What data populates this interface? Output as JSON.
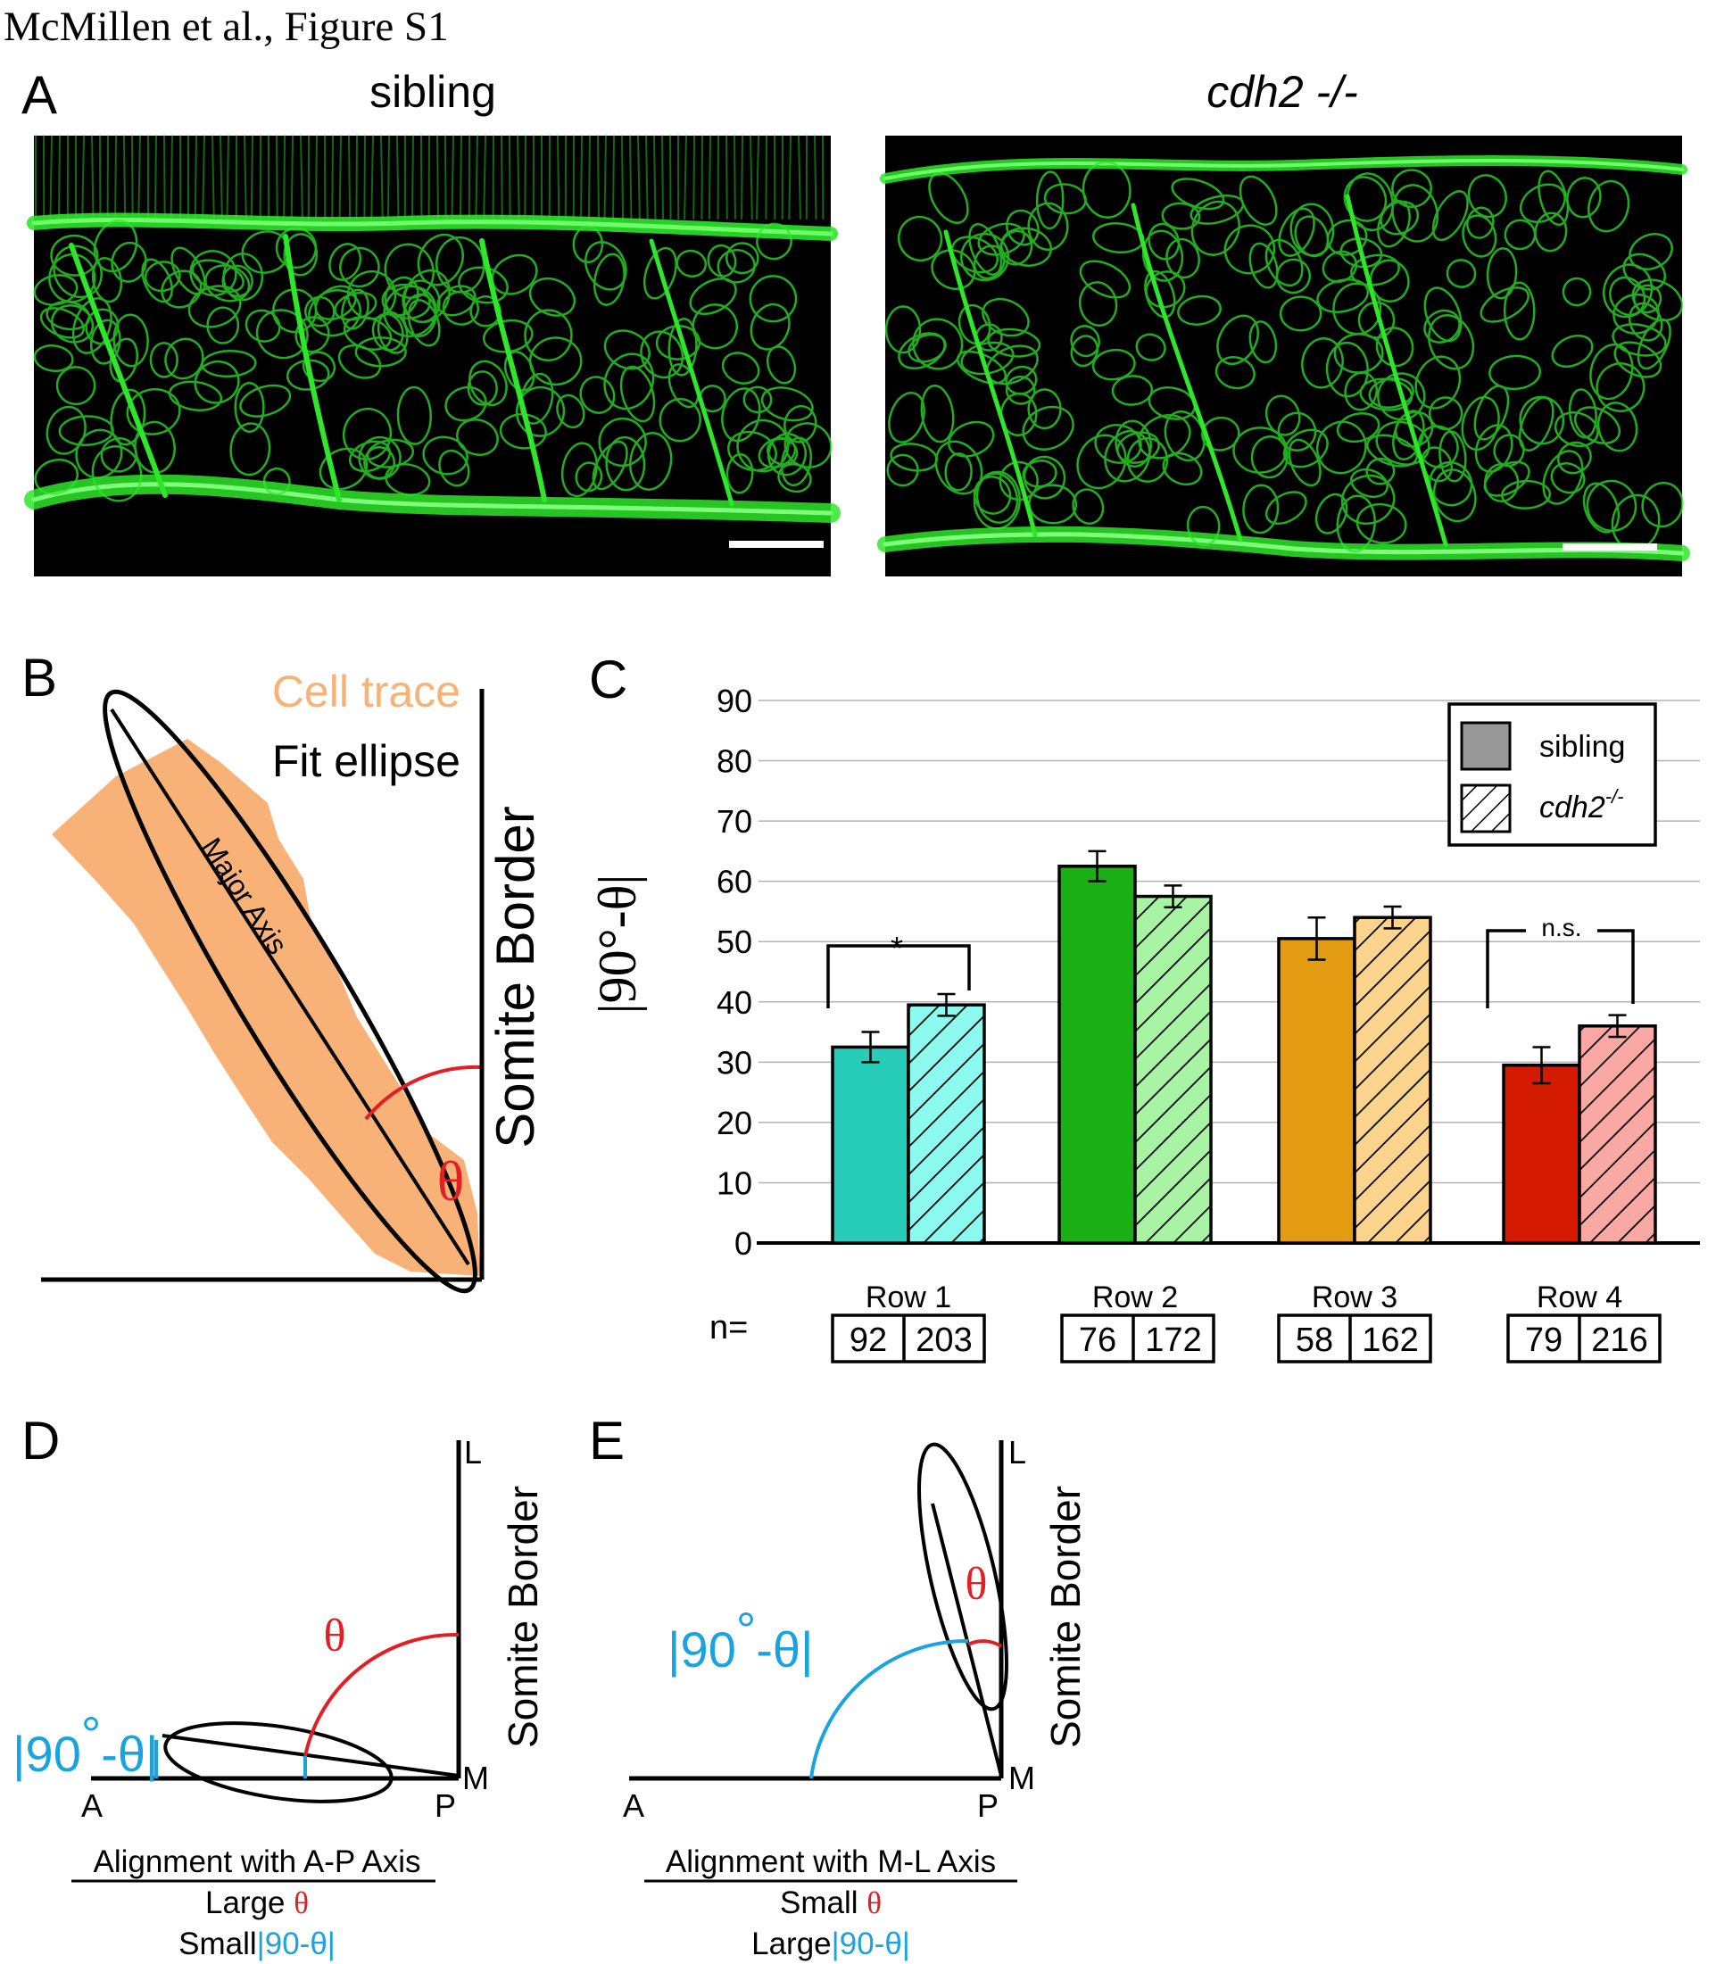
{
  "header": {
    "title": "McMillen et al., Figure S1"
  },
  "panel_a": {
    "letter": "A",
    "left_label": "sibling",
    "right_label": "cdh2 -/-"
  },
  "panel_b": {
    "letter": "B",
    "cell_trace": "Cell trace",
    "fit_ellipse": "Fit ellipse",
    "major_axis": "Major Axis",
    "somite_border": "Somite Border",
    "theta": "θ",
    "colors": {
      "cell_trace": "#f8b277",
      "theta": "#e31e24"
    }
  },
  "panel_c": {
    "letter": "C",
    "n_label": "n=",
    "n_values": [
      [
        "92",
        "203"
      ],
      [
        "76",
        "172"
      ],
      [
        "58",
        "162"
      ],
      [
        "79",
        "216"
      ]
    ],
    "significance": [
      "*",
      "n.s."
    ]
  },
  "chart_data": {
    "type": "bar",
    "title": "",
    "xlabel": "",
    "ylabel": "|90°-θ|",
    "ylim": [
      0,
      90
    ],
    "yticks": [
      0,
      10,
      20,
      30,
      40,
      50,
      60,
      70,
      80,
      90
    ],
    "grid": true,
    "legend_position": "top-right",
    "categories": [
      "Row 1",
      "Row 2",
      "Row 3",
      "Row 4"
    ],
    "series": [
      {
        "name": "sibling",
        "values": [
          32.5,
          62.5,
          50.5,
          29.5
        ],
        "errors": [
          2.5,
          2.5,
          3.5,
          3.0
        ],
        "colors": [
          "#27cdb8",
          "#1ab015",
          "#e39c11",
          "#d41a00"
        ],
        "pattern": "solid"
      },
      {
        "name": "cdh2-/-",
        "values": [
          39.5,
          57.5,
          54.0,
          36.0
        ],
        "errors": [
          1.8,
          1.8,
          1.8,
          1.8
        ],
        "colors": [
          "#8dfaf0",
          "#a8f4a4",
          "#fcd48e",
          "#f9a8a4"
        ],
        "pattern": "hatched"
      }
    ],
    "legend": {
      "sibling": "sibling",
      "mutant_base": "cdh2",
      "mutant_sup": "-/-"
    }
  },
  "panel_d": {
    "letter": "D",
    "l": "L",
    "m": "M",
    "a": "A",
    "p": "P",
    "somite_border": "Somite Border",
    "theta": "θ",
    "ninety": "|90",
    "deg": "°",
    "minus_theta": "-θ|",
    "caption_title": "Alignment with A-P Axis",
    "line2_word": "Large",
    "line2_sym": "θ",
    "line3_word": "Small",
    "line3_sym": "|90-θ|"
  },
  "panel_e": {
    "letter": "E",
    "l": "L",
    "m": "M",
    "a": "A",
    "p": "P",
    "somite_border": "Somite Border",
    "theta": "θ",
    "ninety": "|90",
    "deg": "°",
    "minus_theta": "-θ|",
    "caption_title": "Alignment with M-L Axis",
    "line2_word": "Small",
    "line2_sym": "θ",
    "line3_word": "Large",
    "line3_sym": "|90-θ|"
  },
  "colors": {
    "red": "#e31e24",
    "blue": "#1aa3de",
    "micro_green": "#2ee62a"
  }
}
